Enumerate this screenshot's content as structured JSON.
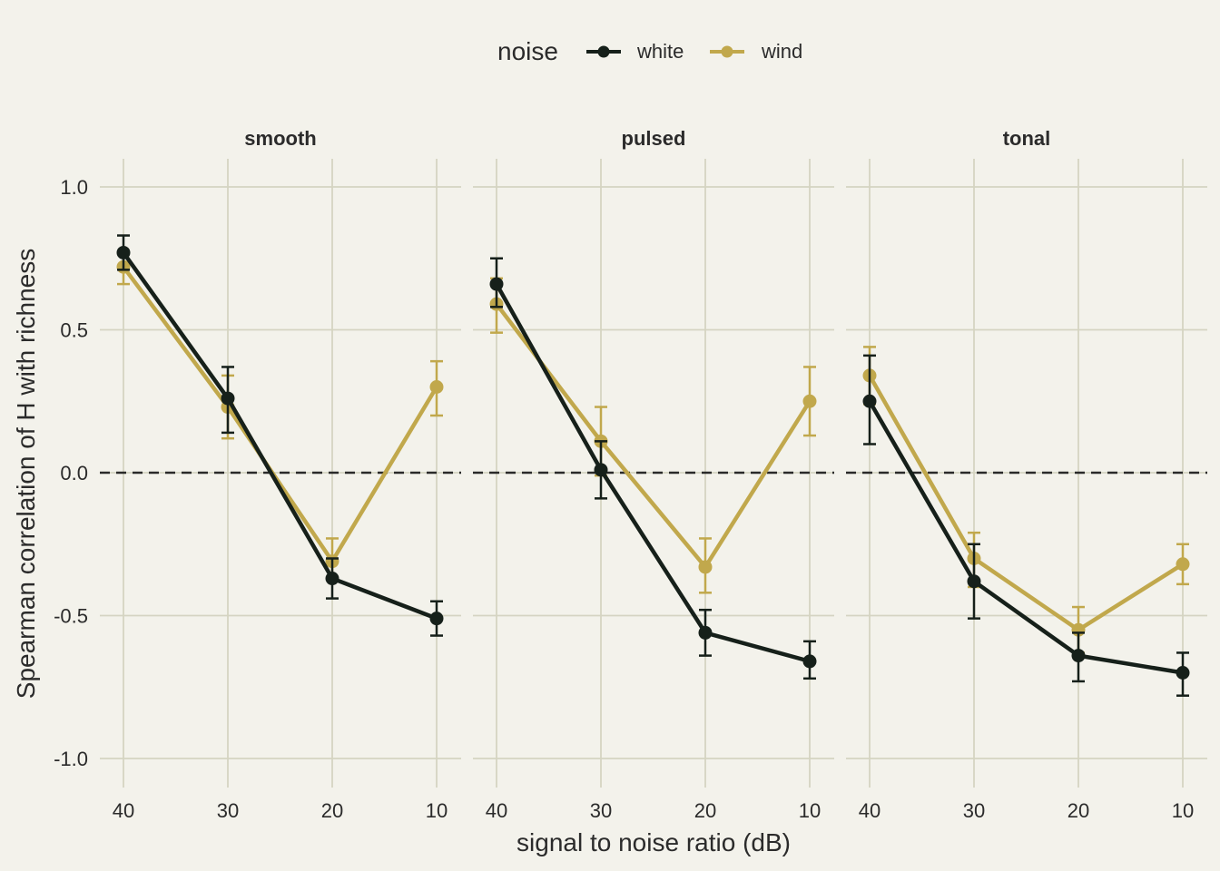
{
  "legend": {
    "title": "noise",
    "items": [
      {
        "label": "white",
        "color": "#16201a"
      },
      {
        "label": "wind",
        "color": "#c1a84c"
      }
    ],
    "position": "top"
  },
  "chart_data": {
    "type": "line",
    "xlabel": "signal to noise ratio (dB)",
    "ylabel": "Spearman correlation of H with richness",
    "x_ticks": [
      40,
      30,
      20,
      10
    ],
    "y_ticks": [
      1.0,
      0.5,
      0.0,
      -0.5,
      -1.0
    ],
    "y_tick_labels": [
      "1.0",
      "0.5",
      "0.0",
      "-0.5",
      "-1.0"
    ],
    "ylim": [
      -1.1,
      1.1
    ],
    "x_reversed": true,
    "reference_line": 0.0,
    "grid": true,
    "panels": [
      {
        "title": "smooth",
        "series": [
          {
            "name": "white",
            "x": [
              40,
              30,
              20,
              10
            ],
            "y": [
              0.77,
              0.26,
              -0.37,
              -0.51
            ],
            "lower": [
              0.71,
              0.14,
              -0.44,
              -0.57
            ],
            "upper": [
              0.83,
              0.37,
              -0.3,
              -0.45
            ]
          },
          {
            "name": "wind",
            "x": [
              40,
              30,
              20,
              10
            ],
            "y": [
              0.72,
              0.23,
              -0.31,
              0.3
            ],
            "lower": [
              0.66,
              0.12,
              -0.37,
              0.2
            ],
            "upper": [
              0.77,
              0.34,
              -0.23,
              0.39
            ]
          }
        ]
      },
      {
        "title": "pulsed",
        "series": [
          {
            "name": "white",
            "x": [
              40,
              30,
              20,
              10
            ],
            "y": [
              0.66,
              0.01,
              -0.56,
              -0.66
            ],
            "lower": [
              0.58,
              -0.09,
              -0.64,
              -0.72
            ],
            "upper": [
              0.75,
              0.11,
              -0.48,
              -0.59
            ]
          },
          {
            "name": "wind",
            "x": [
              40,
              30,
              20,
              10
            ],
            "y": [
              0.59,
              0.11,
              -0.33,
              0.25
            ],
            "lower": [
              0.49,
              -0.01,
              -0.42,
              0.13
            ],
            "upper": [
              0.68,
              0.23,
              -0.23,
              0.37
            ]
          }
        ]
      },
      {
        "title": "tonal",
        "series": [
          {
            "name": "white",
            "x": [
              40,
              30,
              20,
              10
            ],
            "y": [
              0.25,
              -0.38,
              -0.64,
              -0.7
            ],
            "lower": [
              0.1,
              -0.51,
              -0.73,
              -0.78
            ],
            "upper": [
              0.41,
              -0.25,
              -0.56,
              -0.63
            ]
          },
          {
            "name": "wind",
            "x": [
              40,
              30,
              20,
              10
            ],
            "y": [
              0.34,
              -0.3,
              -0.55,
              -0.32
            ],
            "lower": [
              0.24,
              -0.4,
              -0.63,
              -0.39
            ],
            "upper": [
              0.44,
              -0.21,
              -0.47,
              -0.25
            ]
          }
        ]
      }
    ]
  }
}
